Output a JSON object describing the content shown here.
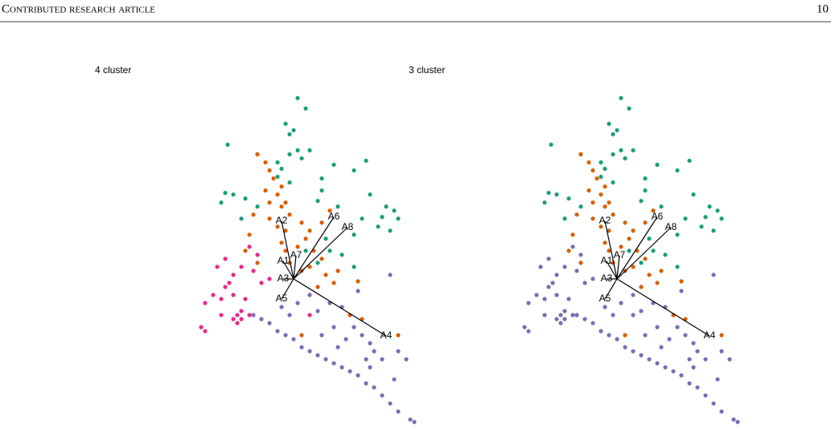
{
  "header": {
    "title": "Contributed research article",
    "page": "10"
  },
  "chart_data": [
    {
      "type": "scatter",
      "title": "4 cluster",
      "xlim": [
        -1.3,
        1.6
      ],
      "ylim": [
        -1.85,
        2.4
      ],
      "series": [
        {
          "color": "#1b9e77",
          "x": [
            0.05,
            0.15,
            -0.1,
            -0.05,
            0,
            0.2,
            -0.05,
            0.1,
            -0.82,
            -0.45,
            -0.2,
            0.5,
            0.9,
            0.75,
            0.35,
            -0.15,
            -0.2,
            -0.85,
            -0.75,
            -0.6,
            -0.9,
            -0.65,
            -0.45,
            0.35,
            0.3,
            0.55,
            0.95,
            1.15,
            1.25,
            1.1,
            1.05,
            1.2,
            1.3,
            0.85,
            0.75,
            0.4,
            0.45,
            0.6,
            0.3,
            0.15,
            0.75,
            -0.05,
            0.05
          ],
          "y": [
            2.25,
            2.12,
            1.93,
            1.8,
            1.85,
            1.6,
            1.55,
            1.5,
            1.67,
            1.55,
            1.45,
            1.42,
            1.47,
            1.35,
            1.25,
            1.37,
            1.27,
            1.07,
            1.05,
            1,
            0.95,
            0.75,
            0.9,
            1.1,
            0.97,
            0.9,
            1.05,
            0.9,
            0.85,
            0.77,
            0.65,
            0.6,
            0.75,
            0.75,
            0.55,
            0.5,
            0.35,
            0.3,
            0.2,
            0.35,
            0.15,
            1.2,
            1.6
          ]
        },
        {
          "color": "#d95f02",
          "x": [
            -0.45,
            -0.3,
            -0.25,
            -0.35,
            -0.2,
            -0.3,
            -0.15,
            -0.05,
            -0.3,
            -0.5,
            -0.2,
            -0.1,
            0.1,
            0.2,
            0.35,
            0.15,
            -0.15,
            -0.1,
            0.05,
            0.25,
            0.35,
            -0.05,
            0.1,
            0.2,
            0.4,
            0.55,
            0.5,
            0.8,
            0.3,
            -0.55,
            -0.6,
            -0.45,
            -0.15,
            -0.1,
            0.7,
            0.85,
            1.3,
            0.1,
            -0.35,
            0.45
          ],
          "y": [
            1.55,
            1.35,
            1.25,
            1.1,
            1.05,
            0.95,
            0.9,
            0.8,
            0.75,
            0.8,
            0.65,
            0.6,
            0.7,
            0.6,
            0.7,
            0.5,
            0.45,
            0.35,
            0.4,
            0.35,
            0.25,
            0.2,
            0.1,
            0.15,
            0.05,
            0.1,
            -0.05,
            -0.03,
            -0.1,
            0.55,
            0.35,
            0.2,
            1.15,
            0.95,
            -0.45,
            -0.5,
            -0.7,
            -0.7,
            1.45,
            0.85
          ]
        },
        {
          "color": "#e7298a",
          "x": [
            -0.55,
            -0.85,
            -0.95,
            -0.75,
            -0.65,
            -0.5,
            -0.8,
            -1,
            -1.1,
            -0.9,
            -0.75,
            -0.6,
            -1.15,
            -1.1,
            -0.7,
            -0.65,
            -0.7,
            -0.75,
            -0.65,
            -0.45,
            -0.3,
            -0.85,
            -0.9,
            -0.55,
            -0.4,
            0.2
          ],
          "y": [
            0.4,
            0.25,
            0.15,
            0.05,
            0.15,
            0.1,
            -0.05,
            -0.2,
            -0.3,
            -0.25,
            -0.2,
            -0.25,
            -0.6,
            -0.65,
            -0.45,
            -0.5,
            -0.55,
            -0.5,
            -0.4,
            0.3,
            0,
            -0.1,
            -0.45,
            -0.45,
            -0.05,
            -0.45
          ]
        },
        {
          "color": "#7570b3",
          "x": [
            -0.5,
            -0.4,
            -0.3,
            -0.2,
            -0.1,
            0,
            0.1,
            0.2,
            0.3,
            0.4,
            0.5,
            0.6,
            0.7,
            0.8,
            0.9,
            1,
            1.1,
            1.2,
            1.3,
            1.45,
            1.5,
            0.3,
            0.45,
            0.6,
            0.75,
            0.85,
            0.95,
            1,
            1.1,
            0.9,
            1.2,
            0.8,
            0.2,
            0.05,
            -0.15,
            0.5,
            0.65,
            0.95,
            1.3,
            1.4,
            1.25,
            -0.05,
            0.35,
            0.55
          ],
          "y": [
            -0.45,
            -0.5,
            -0.55,
            -0.65,
            -0.7,
            -0.75,
            -0.85,
            -0.9,
            -0.95,
            -1,
            -1.05,
            -1.1,
            -1.15,
            -1.2,
            -1.3,
            -1.35,
            -1.45,
            -1.55,
            -1.65,
            -1.75,
            -1.78,
            -0.4,
            -0.3,
            -0.35,
            -0.6,
            -0.7,
            -0.8,
            -0.9,
            -1,
            -1,
            0.05,
            -0.15,
            -0.2,
            -0.3,
            -0.35,
            -0.6,
            -0.75,
            -1.1,
            -0.9,
            -1,
            -1.25,
            -0.45,
            -0.7,
            -0.85
          ]
        }
      ],
      "axes": [
        {
          "label": "A1",
          "x": -0.13,
          "y": 0.22
        },
        {
          "label": "A2",
          "x": -0.15,
          "y": 0.72
        },
        {
          "label": "A3",
          "x": -0.13,
          "y": 0
        },
        {
          "label": "A4",
          "x": 1.15,
          "y": -0.71
        },
        {
          "label": "A5",
          "x": -0.15,
          "y": -0.25
        },
        {
          "label": "A6",
          "x": 0.5,
          "y": 0.77
        },
        {
          "label": "A7",
          "x": 0.03,
          "y": 0.29
        },
        {
          "label": "A8",
          "x": 0.67,
          "y": 0.64
        }
      ]
    },
    {
      "type": "scatter",
      "title": "3 cluster",
      "xlim": [
        -1.3,
        1.6
      ],
      "ylim": [
        -1.85,
        2.4
      ],
      "series": [
        {
          "color": "#1b9e77",
          "x": [
            0.05,
            0.15,
            -0.1,
            -0.05,
            0,
            0.2,
            -0.05,
            0.1,
            -0.82,
            -0.45,
            -0.2,
            0.5,
            0.9,
            0.75,
            0.35,
            -0.15,
            -0.2,
            -0.85,
            -0.75,
            -0.6,
            -0.9,
            -0.65,
            -0.45,
            0.35,
            0.3,
            0.55,
            0.95,
            1.15,
            1.25,
            1.1,
            1.05,
            1.2,
            1.3,
            0.85,
            0.75,
            0.4,
            0.45,
            0.6,
            0.3,
            0.15,
            0.75,
            -0.05,
            0.05
          ],
          "y": [
            2.25,
            2.12,
            1.93,
            1.8,
            1.85,
            1.6,
            1.55,
            1.5,
            1.67,
            1.55,
            1.45,
            1.42,
            1.47,
            1.35,
            1.25,
            1.37,
            1.27,
            1.07,
            1.05,
            1,
            0.95,
            0.75,
            0.9,
            1.1,
            0.97,
            0.9,
            1.05,
            0.9,
            0.85,
            0.77,
            0.65,
            0.6,
            0.75,
            0.75,
            0.55,
            0.5,
            0.35,
            0.3,
            0.2,
            0.35,
            0.15,
            1.2,
            1.6
          ]
        },
        {
          "color": "#d95f02",
          "x": [
            -0.45,
            -0.3,
            -0.25,
            -0.35,
            -0.2,
            -0.3,
            -0.15,
            -0.05,
            -0.3,
            -0.5,
            -0.2,
            -0.1,
            0.1,
            0.2,
            0.35,
            0.15,
            -0.15,
            -0.1,
            0.05,
            0.25,
            0.35,
            -0.05,
            0.1,
            0.2,
            0.4,
            0.55,
            0.5,
            0.8,
            0.3,
            -0.55,
            -0.6,
            -0.45,
            -0.15,
            -0.1,
            0.7,
            0.85,
            1.3,
            0.1,
            -0.35,
            0.45
          ],
          "y": [
            1.55,
            1.35,
            1.25,
            1.1,
            1.05,
            0.95,
            0.9,
            0.8,
            0.75,
            0.8,
            0.65,
            0.6,
            0.7,
            0.6,
            0.7,
            0.5,
            0.45,
            0.35,
            0.4,
            0.35,
            0.25,
            0.2,
            0.1,
            0.15,
            0.05,
            0.1,
            -0.05,
            -0.03,
            -0.1,
            0.55,
            0.35,
            0.2,
            1.15,
            0.95,
            -0.45,
            -0.5,
            -0.7,
            -0.7,
            1.45,
            0.85
          ]
        },
        {
          "color": "#7570b3",
          "x": [
            -0.55,
            -0.85,
            -0.95,
            -0.75,
            -0.65,
            -0.5,
            -0.8,
            -1,
            -1.1,
            -0.9,
            -0.75,
            -0.6,
            -1.15,
            -1.1,
            -0.7,
            -0.65,
            -0.7,
            -0.75,
            -0.65,
            -0.45,
            -0.3,
            -0.85,
            -0.9,
            -0.55,
            -0.4,
            0.2,
            -0.5,
            -0.4,
            -0.3,
            -0.2,
            -0.1,
            0,
            0.1,
            0.2,
            0.3,
            0.4,
            0.5,
            0.6,
            0.7,
            0.8,
            0.9,
            1,
            1.1,
            1.2,
            1.3,
            1.45,
            1.5,
            0.3,
            0.45,
            0.6,
            0.75,
            0.85,
            0.95,
            1,
            1.1,
            0.9,
            1.2,
            0.8,
            0.2,
            0.05,
            -0.15,
            0.5,
            0.65,
            0.95,
            1.3,
            1.4,
            1.25,
            -0.05,
            0.35,
            0.55
          ],
          "y": [
            0.4,
            0.25,
            0.15,
            0.05,
            0.15,
            0.1,
            -0.05,
            -0.2,
            -0.3,
            -0.25,
            -0.2,
            -0.25,
            -0.6,
            -0.65,
            -0.45,
            -0.5,
            -0.55,
            -0.5,
            -0.4,
            0.3,
            0,
            -0.1,
            -0.45,
            -0.45,
            -0.05,
            -0.45,
            -0.45,
            -0.5,
            -0.55,
            -0.65,
            -0.7,
            -0.75,
            -0.85,
            -0.9,
            -0.95,
            -1,
            -1.05,
            -1.1,
            -1.15,
            -1.2,
            -1.3,
            -1.35,
            -1.45,
            -1.55,
            -1.65,
            -1.75,
            -1.78,
            -0.4,
            -0.3,
            -0.35,
            -0.6,
            -0.7,
            -0.8,
            -0.9,
            -1,
            -1,
            0.05,
            -0.15,
            -0.2,
            -0.3,
            -0.35,
            -0.6,
            -0.75,
            -1.1,
            -0.9,
            -1,
            -1.25,
            -0.45,
            -0.7,
            -0.85
          ]
        }
      ],
      "axes": [
        {
          "label": "A1",
          "x": -0.13,
          "y": 0.22
        },
        {
          "label": "A2",
          "x": -0.15,
          "y": 0.72
        },
        {
          "label": "A3",
          "x": -0.13,
          "y": 0
        },
        {
          "label": "A4",
          "x": 1.15,
          "y": -0.71
        },
        {
          "label": "A5",
          "x": -0.15,
          "y": -0.25
        },
        {
          "label": "A6",
          "x": 0.5,
          "y": 0.77
        },
        {
          "label": "A7",
          "x": 0.03,
          "y": 0.29
        },
        {
          "label": "A8",
          "x": 0.67,
          "y": 0.64
        }
      ]
    }
  ]
}
